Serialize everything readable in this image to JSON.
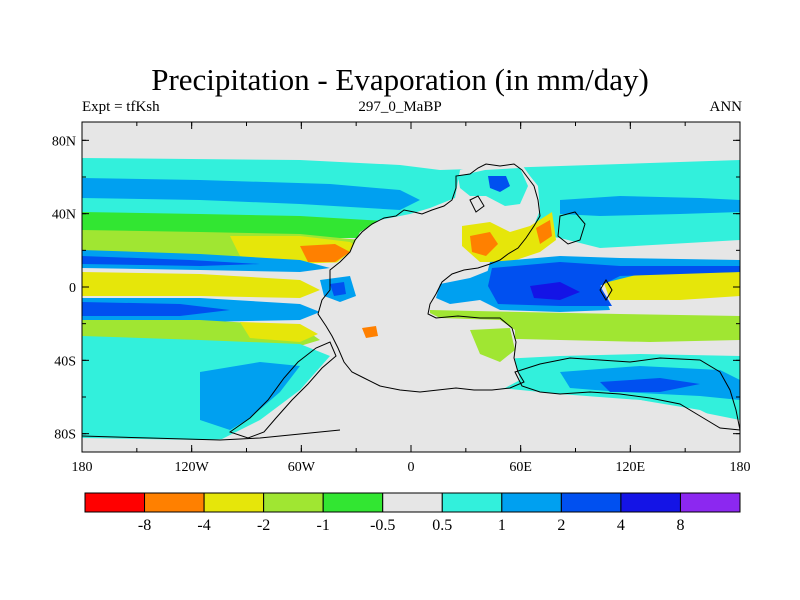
{
  "header": {
    "title": "Precipitation - Evaporation (in mm/day)",
    "left": "Expt = tfKsh",
    "center": "297_0_MaBP",
    "right": "ANN"
  },
  "chart_data": {
    "type": "heatmap",
    "title": "Precipitation - Evaporation (in mm/day)",
    "x_ticks": [
      "180",
      "120W",
      "60W",
      "0",
      "60E",
      "120E",
      "180"
    ],
    "x_tick_values": [
      -180,
      -120,
      -60,
      0,
      60,
      120,
      180
    ],
    "y_ticks": [
      "80N",
      "40N",
      "0",
      "40S",
      "80S"
    ],
    "y_tick_values": [
      80,
      40,
      0,
      -40,
      -80
    ],
    "xlim": [
      -180,
      180
    ],
    "ylim": [
      -90,
      90
    ],
    "colorbar": {
      "labels": [
        "-8",
        "-4",
        "-2",
        "-1",
        "-0.5",
        "0.5",
        "1",
        "2",
        "4",
        "8"
      ],
      "colors": [
        "#ff0000",
        "#ff8000",
        "#e6e60a",
        "#a0e632",
        "#32e632",
        "#e6e6e6",
        "#32f0dc",
        "#00a0f0",
        "#0050f0",
        "#1414e6",
        "#8c28f0"
      ]
    },
    "colors": {
      "land": "#e6e6e6",
      "dry_strong": "#ff8000",
      "dry": "#e6e60a",
      "dry_light": "#a0e632",
      "dry_weak": "#32e632",
      "wet_weak": "#32f0dc",
      "wet": "#00a0f0",
      "wet_strong": "#0050f0",
      "wet_max": "#1414e6"
    }
  }
}
